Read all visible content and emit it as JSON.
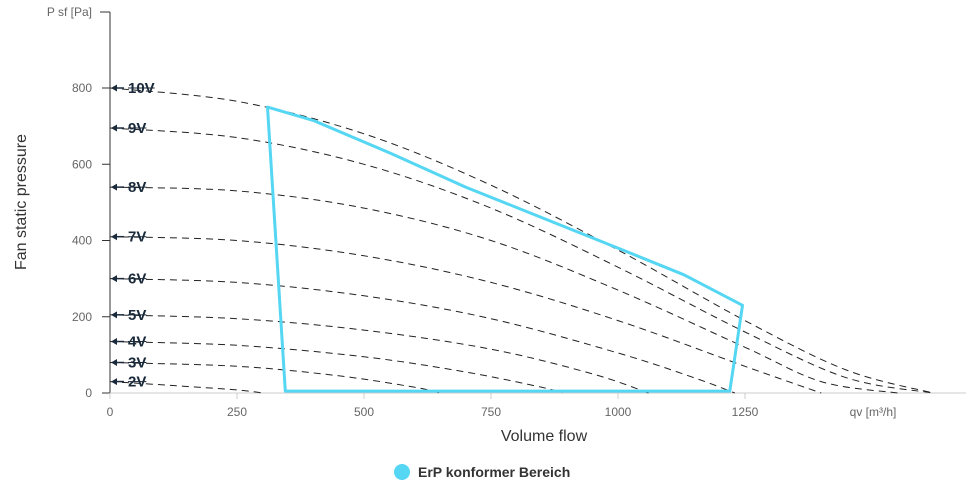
{
  "chart_data": {
    "type": "line",
    "xlabel": "Volume flow",
    "xunit_label": "qv [m³/h]",
    "ylabel": "Fan static pressure",
    "yunit_label": "P sf [Pa]",
    "xlim": [
      0,
      1620
    ],
    "ylim": [
      0,
      1000
    ],
    "xticks": [
      0,
      250,
      500,
      750,
      1000,
      1250
    ],
    "yticks": [
      0,
      200,
      400,
      600,
      800
    ],
    "grid": false,
    "legend": {
      "placement": "bottom-center",
      "entries": [
        {
          "name": "ErP konformer Bereich",
          "color": "#55d6f2"
        }
      ]
    },
    "curve_color": "#222222",
    "curves": [
      {
        "label": "10V",
        "points": [
          [
            0,
            800
          ],
          [
            250,
            765
          ],
          [
            500,
            680
          ],
          [
            750,
            545
          ],
          [
            1000,
            375
          ],
          [
            1250,
            190
          ],
          [
            1450,
            60
          ],
          [
            1620,
            0
          ]
        ]
      },
      {
        "label": "9V",
        "points": [
          [
            0,
            695
          ],
          [
            250,
            670
          ],
          [
            500,
            600
          ],
          [
            750,
            485
          ],
          [
            1000,
            330
          ],
          [
            1250,
            160
          ],
          [
            1450,
            40
          ],
          [
            1620,
            0
          ]
        ]
      },
      {
        "label": "8V",
        "points": [
          [
            0,
            540
          ],
          [
            250,
            530
          ],
          [
            500,
            485
          ],
          [
            750,
            400
          ],
          [
            1000,
            270
          ],
          [
            1250,
            120
          ],
          [
            1400,
            30
          ],
          [
            1550,
            0
          ]
        ]
      },
      {
        "label": "7V",
        "points": [
          [
            0,
            410
          ],
          [
            250,
            400
          ],
          [
            500,
            360
          ],
          [
            750,
            290
          ],
          [
            1000,
            190
          ],
          [
            1250,
            70
          ],
          [
            1400,
            0
          ]
        ]
      },
      {
        "label": "6V",
        "points": [
          [
            0,
            300
          ],
          [
            250,
            290
          ],
          [
            500,
            255
          ],
          [
            750,
            195
          ],
          [
            1000,
            105
          ],
          [
            1150,
            40
          ],
          [
            1230,
            0
          ]
        ]
      },
      {
        "label": "5V",
        "points": [
          [
            0,
            205
          ],
          [
            250,
            195
          ],
          [
            500,
            165
          ],
          [
            750,
            115
          ],
          [
            950,
            50
          ],
          [
            1060,
            0
          ]
        ]
      },
      {
        "label": "4V",
        "points": [
          [
            0,
            135
          ],
          [
            250,
            125
          ],
          [
            500,
            95
          ],
          [
            700,
            55
          ],
          [
            850,
            15
          ],
          [
            890,
            0
          ]
        ]
      },
      {
        "label": "3V",
        "points": [
          [
            0,
            80
          ],
          [
            250,
            70
          ],
          [
            450,
            45
          ],
          [
            600,
            15
          ],
          [
            650,
            0
          ]
        ]
      },
      {
        "label": "2V",
        "points": [
          [
            0,
            30
          ],
          [
            120,
            20
          ],
          [
            250,
            8
          ],
          [
            300,
            0
          ]
        ]
      }
    ],
    "series": [
      {
        "name": "ErP konformer Bereich",
        "color": "#55d6f2",
        "points": [
          [
            310,
            750
          ],
          [
            400,
            715
          ],
          [
            550,
            630
          ],
          [
            700,
            540
          ],
          [
            850,
            460
          ],
          [
            1000,
            380
          ],
          [
            1130,
            310
          ],
          [
            1245,
            230
          ],
          [
            1220,
            5
          ],
          [
            1000,
            5
          ],
          [
            750,
            5
          ],
          [
            415,
            5
          ],
          [
            345,
            5
          ],
          [
            310,
            750
          ]
        ]
      }
    ]
  }
}
